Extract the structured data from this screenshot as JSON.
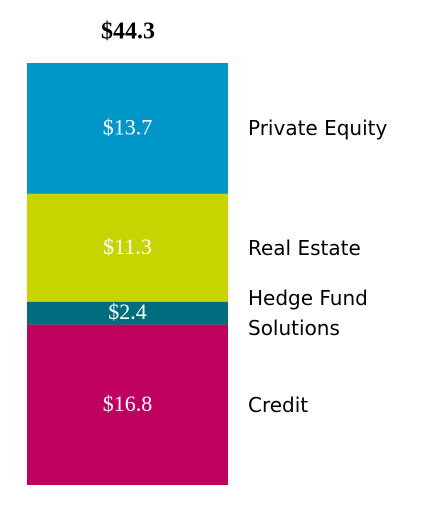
{
  "chart_data": {
    "type": "bar",
    "stacked": true,
    "total_label": "$44.3",
    "series": [
      {
        "name": "Credit",
        "color": "#c0005e",
        "values": [
          16.8
        ],
        "value_labels": [
          "$16.8"
        ]
      },
      {
        "name": "Hedge Fund Solutions",
        "color": "#006d7f",
        "values": [
          2.4
        ],
        "value_labels": [
          "$2.4"
        ]
      },
      {
        "name": "Real Estate",
        "color": "#c8d400",
        "values": [
          11.3
        ],
        "value_labels": [
          "$11.3"
        ]
      },
      {
        "name": "Private Equity",
        "color": "#0096c8",
        "values": [
          13.7
        ],
        "value_labels": [
          "$13.7"
        ]
      }
    ]
  }
}
